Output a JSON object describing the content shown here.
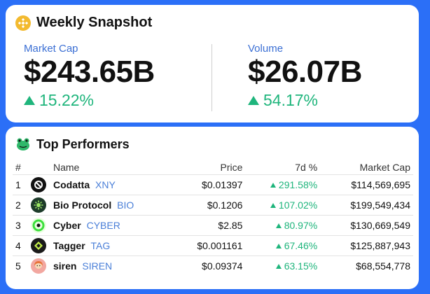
{
  "snapshot": {
    "title": "Weekly Snapshot",
    "market_cap": {
      "label": "Market Cap",
      "value": "$243.65B",
      "change": "15.22%"
    },
    "volume": {
      "label": "Volume",
      "value": "$26.07B",
      "change": "54.17%"
    }
  },
  "performers": {
    "title": "Top Performers",
    "headers": {
      "rank": "#",
      "name": "Name",
      "price": "Price",
      "change": "7d %",
      "mcap": "Market Cap"
    },
    "rows": [
      {
        "rank": "1",
        "name": "Codatta",
        "symbol": "XNY",
        "price": "$0.01397",
        "change": "291.58%",
        "mcap": "$114,569,695",
        "icon": "codatta-logo-icon"
      },
      {
        "rank": "2",
        "name": "Bio Protocol",
        "symbol": "BIO",
        "price": "$0.1206",
        "change": "107.02%",
        "mcap": "$199,549,434",
        "icon": "bio-protocol-logo-icon"
      },
      {
        "rank": "3",
        "name": "Cyber",
        "symbol": "CYBER",
        "price": "$2.85",
        "change": "80.97%",
        "mcap": "$130,669,549",
        "icon": "cyber-logo-icon"
      },
      {
        "rank": "4",
        "name": "Tagger",
        "symbol": "TAG",
        "price": "$0.001161",
        "change": "67.46%",
        "mcap": "$125,887,943",
        "icon": "tagger-logo-icon"
      },
      {
        "rank": "5",
        "name": "siren",
        "symbol": "SIREN",
        "price": "$0.09374",
        "change": "63.15%",
        "mcap": "$68,554,778",
        "icon": "siren-logo-icon"
      }
    ]
  },
  "colors": {
    "background": "#2b6ff7",
    "positive": "#1fb57c",
    "label_blue": "#3b6fd4",
    "symbol_blue": "#4a7fd8",
    "bnb_yellow": "#f3ba2f"
  }
}
